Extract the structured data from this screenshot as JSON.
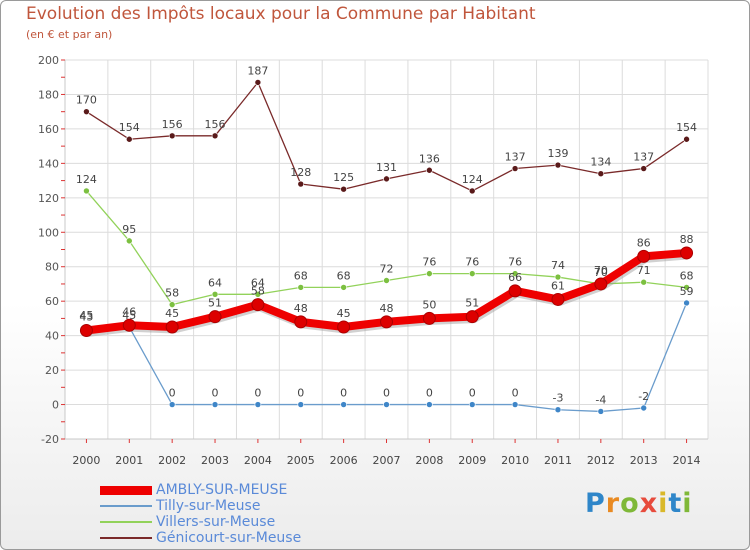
{
  "header": {
    "title": "Evolution des Impôts locaux pour la Commune par Habitant",
    "subtitle": "(en € et par an)"
  },
  "logo": {
    "text": "Proxiti"
  },
  "chart_data": {
    "type": "line",
    "title": "Evolution des Impôts locaux pour la Commune par Habitant",
    "subtitle": "(en € et par an)",
    "xlabel": "",
    "ylabel": "",
    "x": [
      "2000",
      "2001",
      "2002",
      "2003",
      "2004",
      "2005",
      "2006",
      "2007",
      "2008",
      "2009",
      "2010",
      "2011",
      "2012",
      "2013",
      "2014"
    ],
    "ylim": [
      -20,
      200
    ],
    "yticks": [
      "-20",
      "0",
      "20",
      "40",
      "60",
      "80",
      "100",
      "120",
      "140",
      "160",
      "180",
      "200"
    ],
    "grid": true,
    "legend_position": "bottom-left",
    "series": [
      {
        "name": "Génicourt-sur-Meuse",
        "color": "#7a2a2a",
        "marker_color": "#5a1a1a",
        "emphasis": false,
        "values": [
          170,
          154,
          156,
          156,
          187,
          128,
          125,
          131,
          136,
          124,
          137,
          139,
          134,
          137,
          154
        ],
        "labels": [
          "170",
          "154",
          "156",
          "156",
          "187",
          "128",
          "125",
          "131",
          "136",
          "124",
          "137",
          "139",
          "134",
          "137",
          "154"
        ]
      },
      {
        "name": "Villers-sur-Meuse",
        "color": "#92d25a",
        "marker_color": "#7cc040",
        "emphasis": false,
        "values": [
          124,
          95,
          58,
          64,
          64,
          68,
          68,
          72,
          76,
          76,
          76,
          74,
          70,
          71,
          68
        ],
        "labels": [
          "124",
          "95",
          "58",
          "64",
          "64",
          "68",
          "68",
          "72",
          "76",
          "76",
          "76",
          "74",
          "70",
          "71",
          "68"
        ]
      },
      {
        "name": "Tilly-sur-Meuse",
        "color": "#6a9ccc",
        "marker_color": "#3f86c8",
        "emphasis": false,
        "values": [
          45,
          45,
          0,
          0,
          0,
          0,
          0,
          0,
          0,
          0,
          0,
          -3,
          -4,
          -2,
          59
        ],
        "labels": [
          "45",
          "45",
          "0",
          "0",
          "0",
          "0",
          "0",
          "0",
          "0",
          "0",
          "0",
          "-3",
          "-4",
          "-2",
          "59"
        ]
      },
      {
        "name": "AMBLY-SUR-MEUSE",
        "color": "#ee0000",
        "marker_color": "#dd0000",
        "emphasis": true,
        "values": [
          43,
          46,
          45,
          51,
          58,
          48,
          45,
          48,
          50,
          51,
          66,
          61,
          70,
          86,
          88
        ],
        "labels": [
          "43",
          "46",
          "45",
          "51",
          "58",
          "48",
          "45",
          "48",
          "50",
          "51",
          "66",
          "61",
          "70",
          "86",
          "88"
        ]
      }
    ]
  },
  "legend": {
    "items": [
      {
        "label": "AMBLY-SUR-MEUSE",
        "color": "#ee0000",
        "thick": true
      },
      {
        "label": "Tilly-sur-Meuse",
        "color": "#6a9ccc",
        "thick": false
      },
      {
        "label": "Villers-sur-Meuse",
        "color": "#92d25a",
        "thick": false
      },
      {
        "label": "Génicourt-sur-Meuse",
        "color": "#7a2a2a",
        "thick": false
      }
    ]
  }
}
